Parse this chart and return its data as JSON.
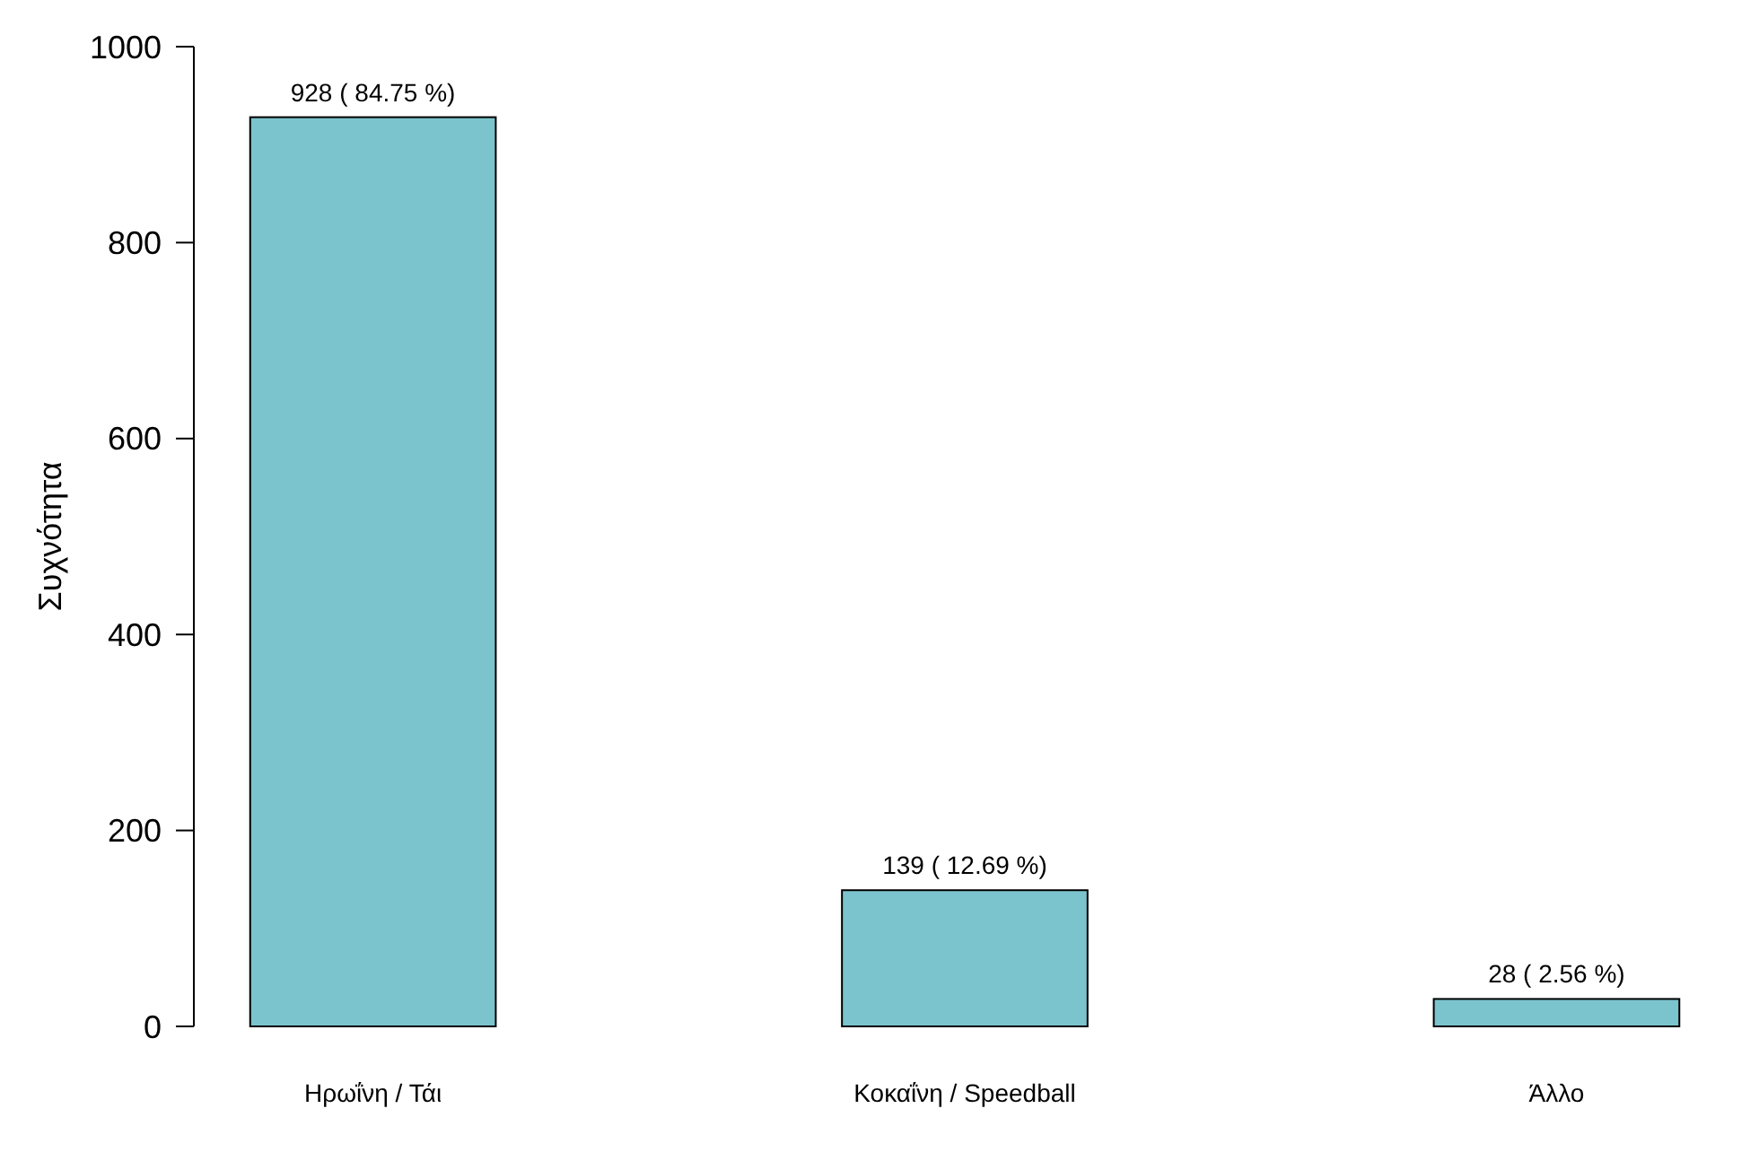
{
  "chart_data": {
    "type": "bar",
    "ylabel": "Συχνότητα",
    "categories": [
      "Ηρωΐνη / Τάι",
      "Κοκαΐνη / Speedball",
      "Άλλο"
    ],
    "values": [
      928,
      139,
      28
    ],
    "color": "#7bc4cd",
    "value_labels": [
      "928 ( 84.75 %)",
      "139 ( 12.69 %)",
      "28 ( 2.56 %)"
    ],
    "ylim": [
      0,
      1000
    ],
    "yticks": [
      0,
      200,
      400,
      600,
      800,
      1000
    ]
  }
}
